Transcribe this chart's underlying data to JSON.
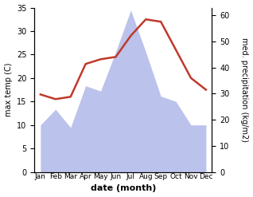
{
  "months": [
    "Jan",
    "Feb",
    "Mar",
    "Apr",
    "May",
    "Jun",
    "Jul",
    "Aug",
    "Sep",
    "Oct",
    "Nov",
    "Dec"
  ],
  "temperature": [
    16.5,
    15.5,
    16.0,
    23.0,
    24.0,
    24.5,
    29.0,
    32.5,
    32.0,
    26.0,
    20.0,
    17.5
  ],
  "precipitation": [
    18,
    24,
    17,
    33,
    31,
    46,
    62,
    46,
    29,
    27,
    18,
    18
  ],
  "temp_color": "#c0392b",
  "precip_color": "#b0b8e8",
  "temp_ylim": [
    0,
    35
  ],
  "precip_ylim": [
    0,
    63
  ],
  "temp_yticks": [
    0,
    5,
    10,
    15,
    20,
    25,
    30,
    35
  ],
  "precip_yticks": [
    0,
    10,
    20,
    30,
    40,
    50,
    60
  ],
  "xlabel": "date (month)",
  "ylabel_left": "max temp (C)",
  "ylabel_right": "med. precipitation (kg/m2)",
  "bg_color": "#ffffff",
  "temp_linewidth": 1.8,
  "xlabel_fontsize": 8,
  "ylabel_fontsize": 7,
  "tick_fontsize": 7,
  "xtick_fontsize": 6.5
}
